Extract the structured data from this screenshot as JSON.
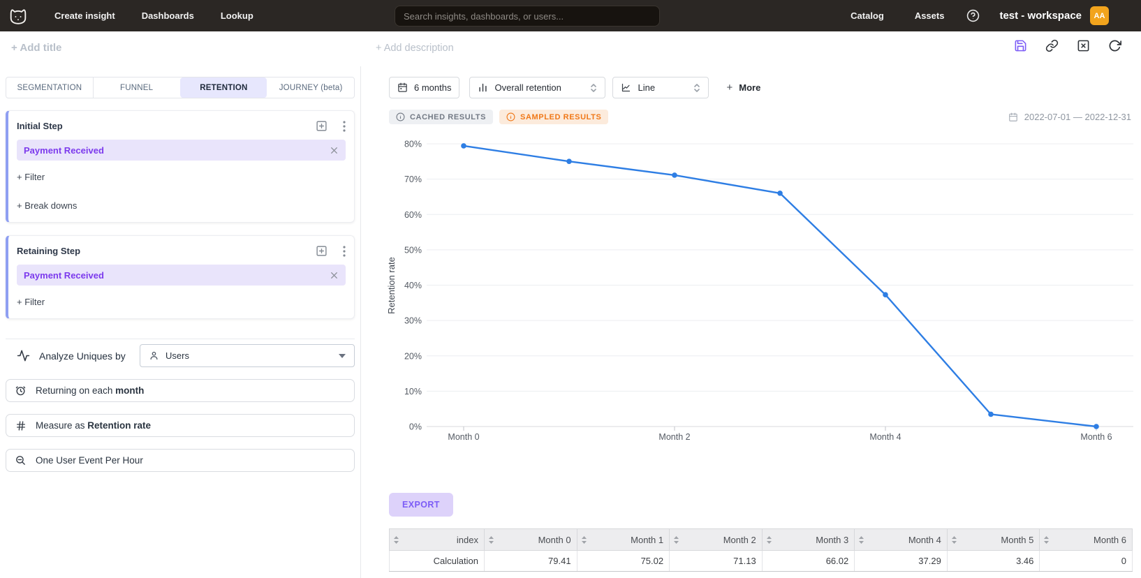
{
  "topnav": {
    "links": [
      {
        "label": "Create insight"
      },
      {
        "label": "Dashboards"
      },
      {
        "label": "Lookup"
      }
    ],
    "search_placeholder": "Search insights, dashboards, or users...",
    "right_links": [
      {
        "label": "Catalog"
      },
      {
        "label": "Assets"
      }
    ],
    "workspace": "test - workspace",
    "avatar_initials": "AA"
  },
  "titlebar": {
    "add_title": "+ Add title",
    "add_description": "+ Add description",
    "action_icons": [
      "save-icon",
      "link-icon",
      "close-icon",
      "refresh-icon"
    ]
  },
  "sidebar": {
    "tabs": [
      {
        "label": "SEGMENTATION",
        "active": false
      },
      {
        "label": "FUNNEL",
        "active": false
      },
      {
        "label": "RETENTION",
        "active": true
      },
      {
        "label": "JOURNEY (beta)",
        "active": false
      }
    ],
    "initial_step": {
      "title": "Initial Step",
      "event": "Payment Received",
      "filter_label": "+ Filter",
      "breakdown_label": "+ Break downs"
    },
    "retaining_step": {
      "title": "Retaining Step",
      "event": "Payment Received",
      "filter_label": "+ Filter"
    },
    "analyze": {
      "label": "Analyze Uniques by",
      "value": "Users"
    },
    "options": [
      {
        "icon": "clock-icon",
        "prefix": "Returning on each ",
        "bold": "month"
      },
      {
        "icon": "hash-icon",
        "prefix": "Measure as ",
        "bold": "Retention rate"
      },
      {
        "icon": "zoom-out-icon",
        "prefix": "One User Event Per Hour",
        "bold": ""
      }
    ]
  },
  "toolbar": {
    "time_window": "6 months",
    "retention_type": "Overall retention",
    "chart_type": "Line",
    "more_plus": "+",
    "more_label": "More"
  },
  "status": {
    "cached": "CACHED RESULTS",
    "sampled": "SAMPLED RESULTS",
    "date_range": "2022-07-01 — 2022-12-31"
  },
  "chart_data": {
    "type": "line",
    "x": [
      "Month 0",
      "Month 1",
      "Month 2",
      "Month 3",
      "Month 4",
      "Month 5",
      "Month 6"
    ],
    "series": [
      {
        "name": "Retention rate",
        "values": [
          79.41,
          75.02,
          71.13,
          66.02,
          37.29,
          3.46,
          0
        ]
      }
    ],
    "title": "",
    "xlabel": "",
    "ylabel": "Retention rate",
    "ylim": [
      0,
      80
    ],
    "ytick_step": 10,
    "ytick_suffix": "%",
    "x_labeled_ticks": [
      "Month 0",
      "Month 2",
      "Month 4",
      "Month 6"
    ],
    "grid": true,
    "legend": false,
    "line_color": "#2E7EE4"
  },
  "export_label": "EXPORT",
  "table": {
    "columns": [
      "index",
      "Month 0",
      "Month 1",
      "Month 2",
      "Month 3",
      "Month 4",
      "Month 5",
      "Month 6"
    ],
    "rows": [
      [
        "Calculation",
        "79.41",
        "75.02",
        "71.13",
        "66.02",
        "37.29",
        "3.46",
        "0"
      ]
    ]
  },
  "colors": {
    "accent": "#7C5CF6",
    "chip_bg": "#E9E4FB",
    "chip_text": "#7C3AED",
    "step_accent": "#8F9FF2",
    "line": "#2E7EE4",
    "sampled": "#F07818",
    "sampled_bg": "#FCEBDC",
    "cached": "#737A85",
    "cached_bg": "#EEF0F3",
    "avatar_bg": "#F2A41D",
    "active_tab_bg": "#E7E7FD",
    "export_bg": "#DDD2FA",
    "topnav_bg": "#2B2724"
  }
}
